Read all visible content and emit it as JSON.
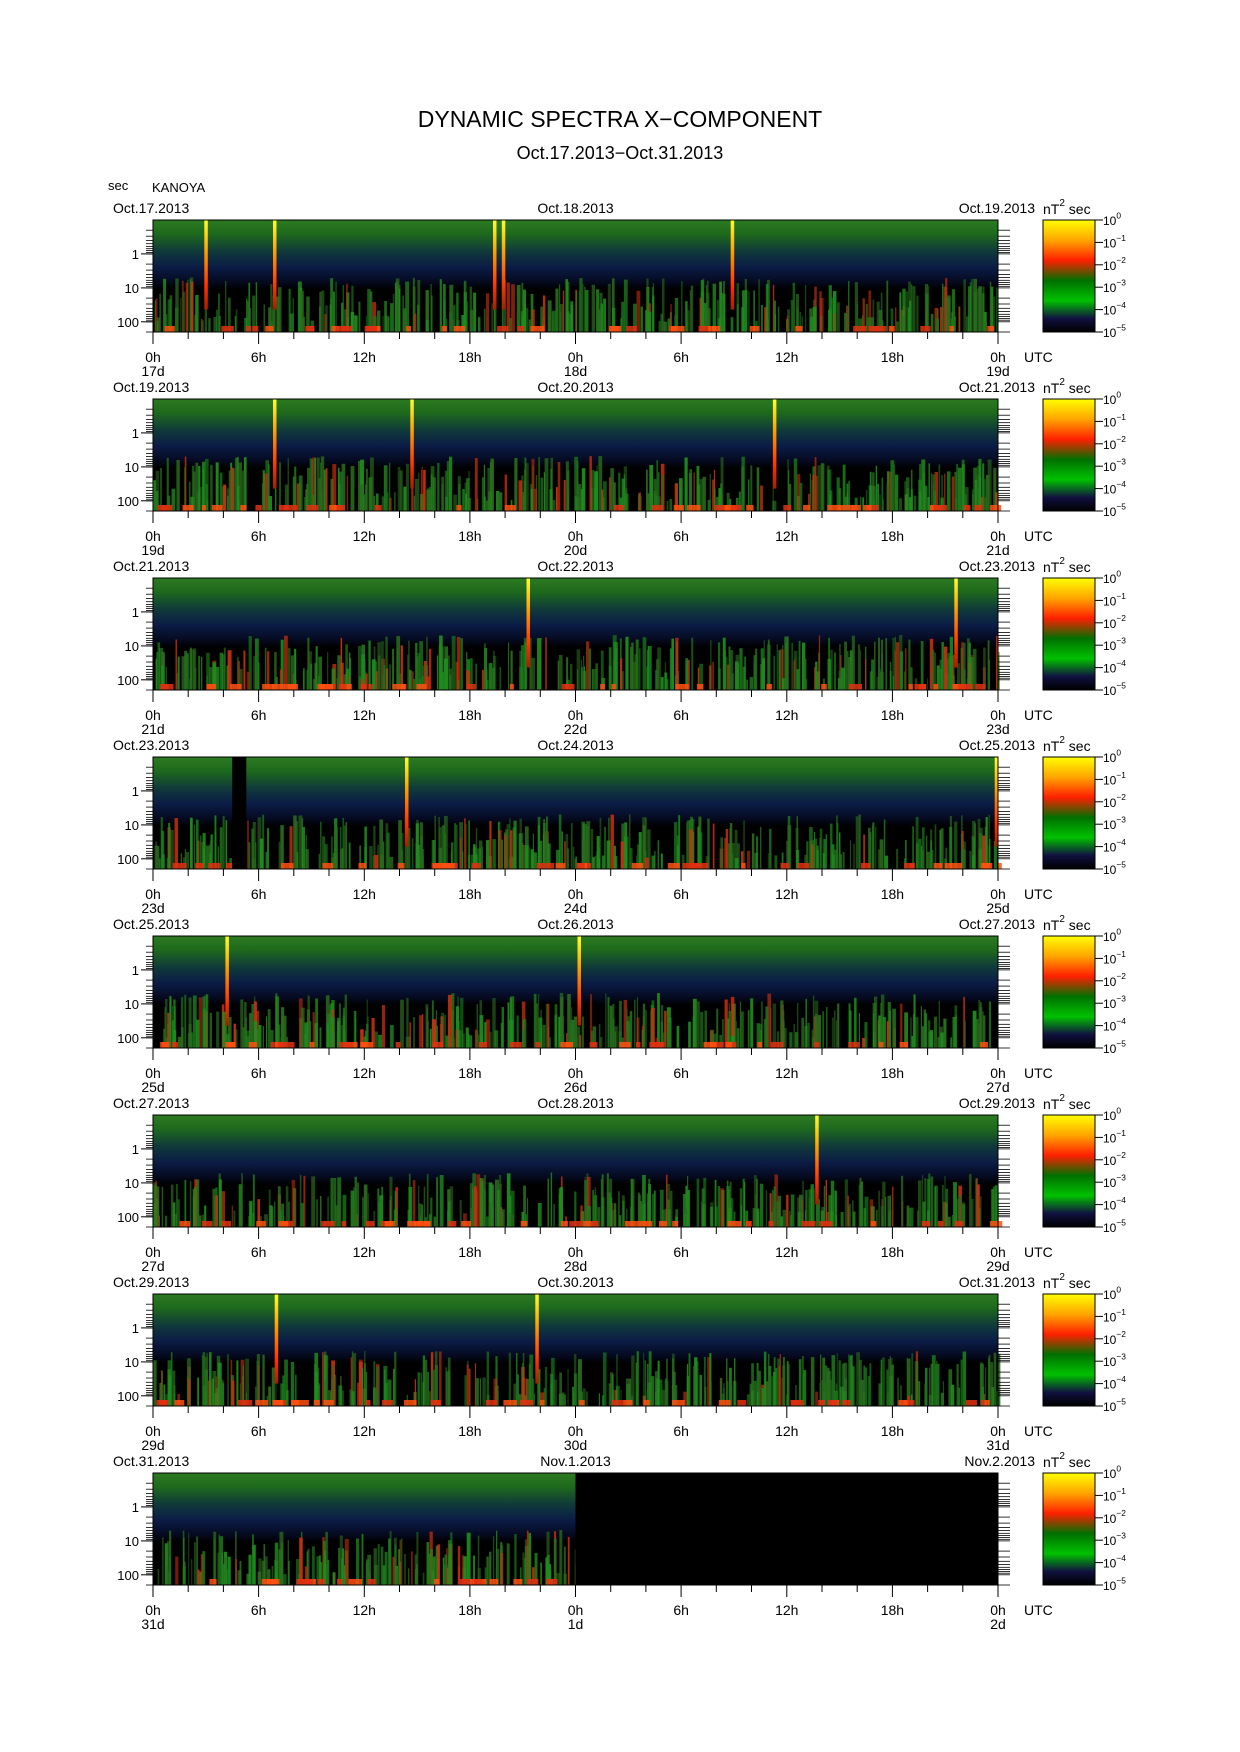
{
  "title": "DYNAMIC SPECTRA X−COMPONENT",
  "subtitle": "Oct.17.2013−Oct.31.2013",
  "station": "KANOYA",
  "period_unit": "sec",
  "colorbar": {
    "unit_base": "nT",
    "unit_exp": "2",
    "unit_suffix": "sec",
    "tick_labels": [
      {
        "base": "10",
        "exp": "0"
      },
      {
        "base": "10",
        "exp": "−1"
      },
      {
        "base": "10",
        "exp": "−2"
      },
      {
        "base": "10",
        "exp": "−3"
      },
      {
        "base": "10",
        "exp": "−4"
      },
      {
        "base": "10",
        "exp": "−5"
      }
    ],
    "colors": [
      "#ffff00",
      "#ffa500",
      "#ff2000",
      "#007000",
      "#00c000",
      "#101040",
      "#000000"
    ]
  },
  "chart_data": {
    "type": "heatmap",
    "y_axis": {
      "label": "sec",
      "scale": "log",
      "range": [
        0.1,
        200
      ],
      "reversed": true,
      "tick_labels": [
        "1",
        "10",
        "100"
      ],
      "tick_values": [
        1,
        10,
        100
      ]
    },
    "x_axis": {
      "label": "UTC",
      "hour_labels": [
        "0h",
        "6h",
        "12h",
        "18h",
        "0h",
        "6h",
        "12h",
        "18h",
        "0h"
      ]
    },
    "panels": [
      {
        "start_date": "Oct.17.2013",
        "mid_date": "Oct.18.2013",
        "end_date": "Oct.19.2013",
        "day_labels": [
          "17d",
          "18d",
          "19d"
        ],
        "spikes_hours": [
          3.0,
          6.9,
          19.4,
          19.9,
          32.9
        ],
        "data_gap_hours": []
      },
      {
        "start_date": "Oct.19.2013",
        "mid_date": "Oct.20.2013",
        "end_date": "Oct.21.2013",
        "day_labels": [
          "19d",
          "20d",
          "21d"
        ],
        "spikes_hours": [
          6.9,
          14.7,
          35.3
        ],
        "data_gap_hours": []
      },
      {
        "start_date": "Oct.21.2013",
        "mid_date": "Oct.22.2013",
        "end_date": "Oct.23.2013",
        "day_labels": [
          "21d",
          "22d",
          "23d"
        ],
        "spikes_hours": [
          21.3,
          45.6
        ],
        "data_gap_hours": []
      },
      {
        "start_date": "Oct.23.2013",
        "mid_date": "Oct.24.2013",
        "end_date": "Oct.25.2013",
        "day_labels": [
          "23d",
          "24d",
          "25d"
        ],
        "spikes_hours": [
          14.4,
          47.9
        ],
        "data_gap_hours": [
          [
            4.5,
            5.3
          ]
        ]
      },
      {
        "start_date": "Oct.25.2013",
        "mid_date": "Oct.26.2013",
        "end_date": "Oct.27.2013",
        "day_labels": [
          "25d",
          "26d",
          "27d"
        ],
        "spikes_hours": [
          4.2,
          24.2
        ],
        "data_gap_hours": []
      },
      {
        "start_date": "Oct.27.2013",
        "mid_date": "Oct.28.2013",
        "end_date": "Oct.29.2013",
        "day_labels": [
          "27d",
          "28d",
          "29d"
        ],
        "spikes_hours": [
          37.7
        ],
        "data_gap_hours": []
      },
      {
        "start_date": "Oct.29.2013",
        "mid_date": "Oct.30.2013",
        "end_date": "Oct.31.2013",
        "day_labels": [
          "29d",
          "30d",
          "31d"
        ],
        "spikes_hours": [
          7.0,
          21.8
        ],
        "data_gap_hours": []
      },
      {
        "start_date": "Oct.31.2013",
        "mid_date": "Nov.1.2013",
        "end_date": "Nov.2.2013",
        "day_labels": [
          "31d",
          "1d",
          "2d"
        ],
        "spikes_hours": [],
        "data_gap_hours": [
          [
            24.0,
            48.0
          ]
        ]
      }
    ]
  }
}
